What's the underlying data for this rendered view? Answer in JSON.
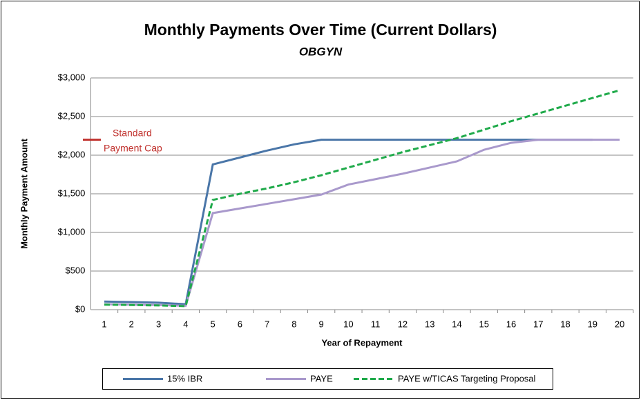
{
  "chart_data": {
    "type": "line",
    "title": "Monthly Payments Over Time (Current Dollars)",
    "subtitle": "OBGYN",
    "x_label": "Year of Repayment",
    "y_label": "Monthly Payment Amount",
    "categories": [
      "1",
      "2",
      "3",
      "4",
      "5",
      "6",
      "7",
      "8",
      "9",
      "10",
      "11",
      "12",
      "13",
      "14",
      "15",
      "16",
      "17",
      "18",
      "19",
      "20"
    ],
    "series": [
      {
        "name": "15% IBR",
        "color": "#4a76a8",
        "dash": false,
        "values": [
          105,
          98,
          90,
          70,
          1880,
          1970,
          2060,
          2140,
          2200,
          2200,
          2200,
          2200,
          2200,
          2200,
          2200,
          2200,
          2200,
          2200,
          2200,
          null
        ]
      },
      {
        "name": "PAYE",
        "color": "#a999cc",
        "dash": false,
        "values": [
          70,
          65,
          60,
          50,
          1250,
          1310,
          1370,
          1430,
          1490,
          1620,
          1690,
          1760,
          1840,
          1920,
          2070,
          2160,
          2200,
          2200,
          2200,
          2200
        ]
      },
      {
        "name": "PAYE w/TICAS Targeting Proposal",
        "color": "#1faa4a",
        "dash": true,
        "values": [
          65,
          60,
          55,
          45,
          1420,
          1500,
          1570,
          1650,
          1740,
          1840,
          1940,
          2040,
          2130,
          2220,
          2330,
          2440,
          2540,
          2640,
          2740,
          2840
        ]
      }
    ],
    "ylim": [
      0,
      3000
    ],
    "yticks": [
      {
        "value": 0,
        "label": "$0"
      },
      {
        "value": 500,
        "label": "$500"
      },
      {
        "value": 1000,
        "label": "$1,000"
      },
      {
        "value": 1500,
        "label": "$1,500"
      },
      {
        "value": 2000,
        "label": "$2,000"
      },
      {
        "value": 2500,
        "label": "$2,500"
      },
      {
        "value": 3000,
        "label": "$3,000"
      }
    ],
    "grid": true,
    "legend": "bottom",
    "annotation": {
      "lines": [
        "Standard",
        "Payment Cap"
      ],
      "value": 2200,
      "color": "#c0302c"
    }
  }
}
